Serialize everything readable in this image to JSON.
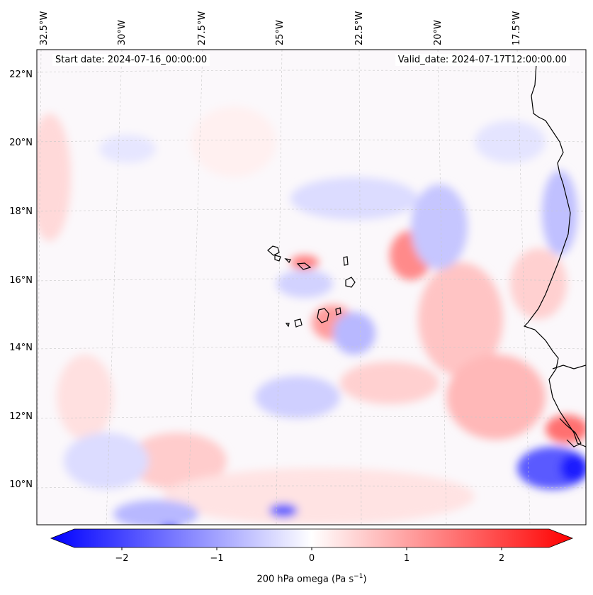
{
  "header": {
    "start_date": "Start date: 2024-07-16_00:00:00",
    "valid_date": "Valid_date: 2024-07-17T12:00:00.00"
  },
  "axes": {
    "lon_labels": [
      "32.5°W",
      "30°W",
      "27.5°W",
      "25°W",
      "22.5°W",
      "20°W",
      "17.5°W"
    ],
    "lat_labels": [
      "22°N",
      "20°N",
      "18°N",
      "16°N",
      "14°N",
      "12°N",
      "10°N"
    ]
  },
  "colorbar": {
    "ticks": [
      "−2",
      "−1",
      "0",
      "1",
      "2"
    ],
    "label": "200 hPa omega (Pa s",
    "label_sup": "−1",
    "label_end": ")",
    "cmap": [
      "#0000ff",
      "#ffffff",
      "#ff0000"
    ],
    "range": [
      -2.75,
      2.75
    ]
  },
  "map": {
    "field": "200 hPa omega",
    "features": [
      "coastline",
      "cape-verde-islands",
      "gridlines"
    ]
  }
}
